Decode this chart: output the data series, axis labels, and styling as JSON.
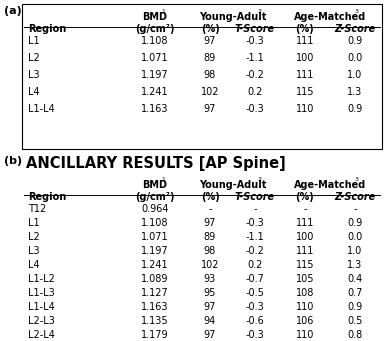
{
  "title_a": "(a)",
  "title_b": "(b)",
  "subtitle_b": "ANCILLARY RESULTS [AP Spine]",
  "table_a": {
    "rows": [
      [
        "L1",
        "1.108",
        "97",
        "-0.3",
        "111",
        "0.9"
      ],
      [
        "L2",
        "1.071",
        "89",
        "-1.1",
        "100",
        "0.0"
      ],
      [
        "L3",
        "1.197",
        "98",
        "-0.2",
        "111",
        "1.0"
      ],
      [
        "L4",
        "1.241",
        "102",
        "0.2",
        "115",
        "1.3"
      ],
      [
        "L1-L4",
        "1.163",
        "97",
        "-0.3",
        "110",
        "0.9"
      ]
    ]
  },
  "table_b": {
    "rows": [
      [
        "T12",
        "0.964",
        "-",
        "-",
        "-",
        "-"
      ],
      [
        "L1",
        "1.108",
        "97",
        "-0.3",
        "111",
        "0.9"
      ],
      [
        "L2",
        "1.071",
        "89",
        "-1.1",
        "100",
        "0.0"
      ],
      [
        "L3",
        "1.197",
        "98",
        "-0.2",
        "111",
        "1.0"
      ],
      [
        "L4",
        "1.241",
        "102",
        "0.2",
        "115",
        "1.3"
      ],
      [
        "L1-L2",
        "1.089",
        "93",
        "-0.7",
        "105",
        "0.4"
      ],
      [
        "L1-L3",
        "1.127",
        "95",
        "-0.5",
        "108",
        "0.7"
      ],
      [
        "L1-L4",
        "1.163",
        "97",
        "-0.3",
        "110",
        "0.9"
      ],
      [
        "L2-L3",
        "1.135",
        "94",
        "-0.6",
        "106",
        "0.5"
      ],
      [
        "L2-L4",
        "1.179",
        "97",
        "-0.3",
        "110",
        "0.8"
      ]
    ]
  },
  "fs": 7.0,
  "hfs": 7.0,
  "background_color": "#ffffff",
  "col_sub_labels": [
    "Region",
    "(g/cm²)",
    "(%)",
    "T-Score",
    "(%)",
    "Z-Score"
  ],
  "col_group_labels": [
    "BMD",
    "Young-Adult",
    "Age-Matched"
  ],
  "col_super": [
    "1",
    "2",
    "3"
  ]
}
